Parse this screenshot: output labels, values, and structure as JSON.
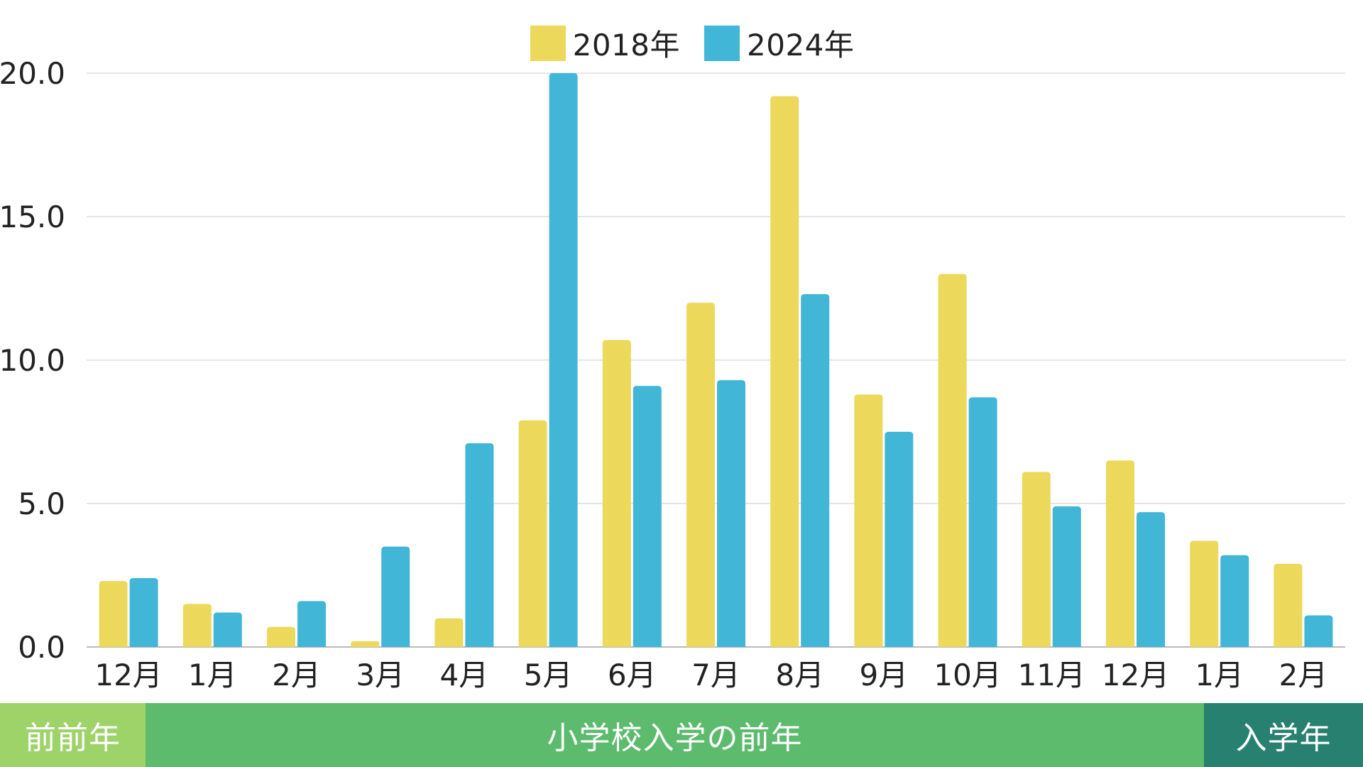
{
  "chart_data": {
    "type": "bar",
    "categories": [
      "12月",
      "1月",
      "2月",
      "3月",
      "4月",
      "5月",
      "6月",
      "7月",
      "8月",
      "9月",
      "10月",
      "11月",
      "12月",
      "1月",
      "2月"
    ],
    "series": [
      {
        "name": "2018年",
        "color": "#ecd95c",
        "values": [
          2.3,
          1.5,
          0.7,
          0.2,
          1.0,
          7.9,
          10.7,
          12.0,
          19.2,
          8.8,
          13.0,
          6.1,
          6.5,
          3.7,
          2.9
        ]
      },
      {
        "name": "2024年",
        "color": "#41b6d6",
        "values": [
          2.4,
          1.2,
          1.6,
          3.5,
          7.1,
          20.0,
          9.1,
          9.3,
          12.3,
          7.5,
          8.7,
          4.9,
          4.7,
          3.2,
          1.1
        ]
      }
    ],
    "ylim": [
      0,
      20
    ],
    "yticks": [
      "0.0",
      "5.0",
      "10.0",
      "15.0",
      "20.0"
    ],
    "ytick_values": [
      0,
      5,
      10,
      15,
      20
    ],
    "grid": true,
    "legend_position": "top-center",
    "xlabel": "",
    "ylabel": ""
  },
  "periods": [
    {
      "label": "前前年",
      "color": "#9ed36a",
      "start": 0,
      "end": 1
    },
    {
      "label": "小学校入学の前年",
      "color": "#5cbb6c",
      "start": 1,
      "end": 14
    },
    {
      "label": "入学年",
      "color": "#278070",
      "start": 14,
      "end": 15
    }
  ]
}
